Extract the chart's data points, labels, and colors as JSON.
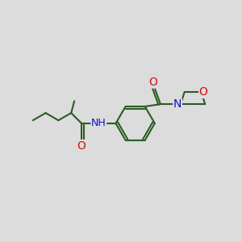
{
  "bg_color": "#dcdcdc",
  "bond_color": "#2a5c24",
  "atom_colors": {
    "O": "#cc1111",
    "N": "#1111cc",
    "H": "#2a5c24",
    "C": "#2a5c24"
  },
  "line_width": 1.5,
  "figsize": [
    3.0,
    3.0
  ],
  "dpi": 100
}
